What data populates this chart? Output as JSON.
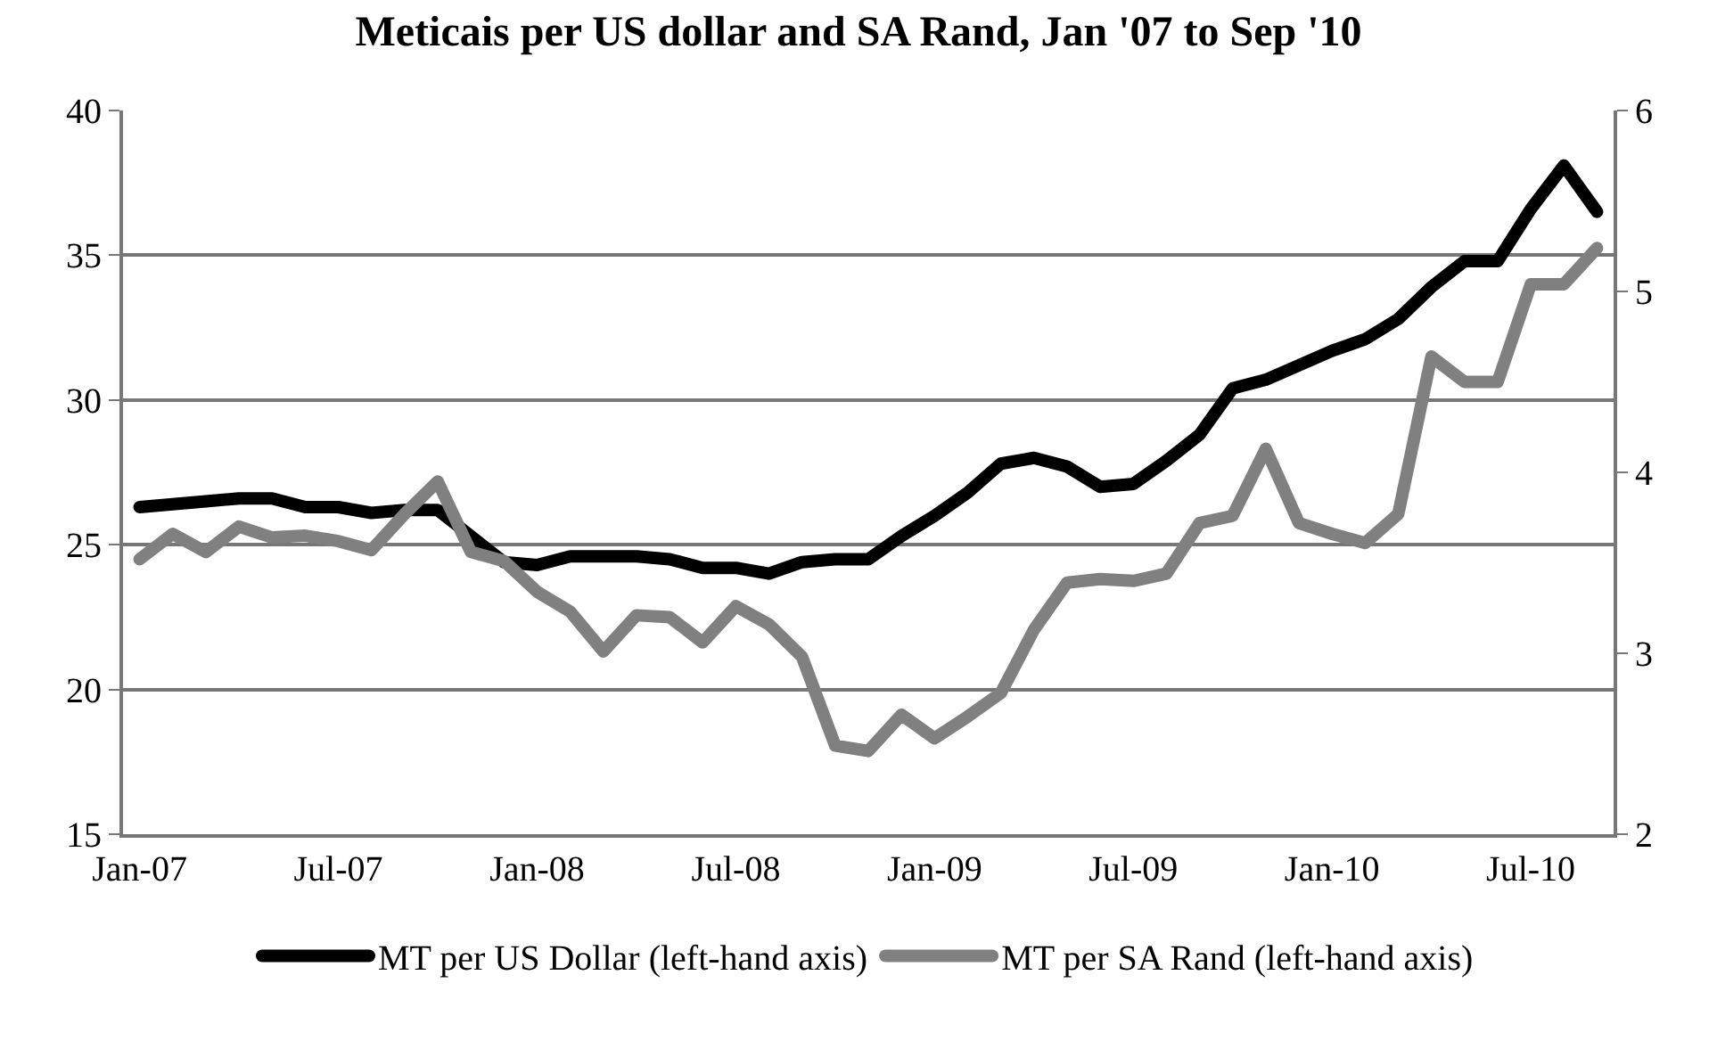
{
  "chart_data": {
    "type": "line",
    "title": "Meticais per US dollar and SA Rand, Jan '07 to Sep '10",
    "categories": [
      "Jan-07",
      null,
      null,
      null,
      null,
      null,
      "Jul-07",
      null,
      null,
      null,
      null,
      null,
      "Jan-08",
      null,
      null,
      null,
      null,
      null,
      "Jul-08",
      null,
      null,
      null,
      null,
      null,
      "Jan-09",
      null,
      null,
      null,
      null,
      null,
      "Jul-09",
      null,
      null,
      null,
      null,
      null,
      "Jan-10",
      null,
      null,
      null,
      null,
      null,
      "Jul-10",
      null,
      null
    ],
    "series": [
      {
        "name": "MT per US Dollar (left-hand axis)",
        "color": "#000000",
        "values": [
          26.3,
          26.4,
          26.5,
          26.6,
          26.6,
          26.3,
          26.3,
          26.1,
          26.2,
          26.2,
          25.3,
          24.4,
          24.3,
          24.6,
          24.6,
          24.6,
          24.5,
          24.2,
          24.2,
          24.0,
          24.4,
          24.5,
          24.5,
          25.3,
          26.0,
          26.8,
          27.8,
          28.0,
          27.7,
          27.0,
          27.1,
          27.9,
          28.8,
          30.4,
          30.7,
          31.2,
          31.7,
          32.1,
          32.8,
          33.9,
          34.8,
          34.8,
          36.6,
          38.1,
          36.5
        ]
      },
      {
        "name": "MT per SA Rand (left-hand axis)",
        "color": "#808080",
        "axis": "y2",
        "values": [
          3.52,
          3.66,
          3.56,
          3.7,
          3.64,
          3.65,
          3.62,
          3.57,
          3.77,
          3.95,
          3.56,
          3.51,
          3.34,
          3.23,
          3.01,
          3.21,
          3.2,
          3.06,
          3.26,
          3.16,
          2.98,
          2.49,
          2.46,
          2.66,
          2.53,
          2.65,
          2.78,
          3.13,
          3.39,
          3.41,
          3.4,
          3.44,
          3.72,
          3.76,
          4.13,
          3.72,
          3.66,
          3.61,
          3.77,
          4.64,
          4.5,
          4.5,
          5.04,
          5.04,
          5.24
        ]
      }
    ],
    "ylim": [
      15,
      40
    ],
    "yticks": [
      15,
      20,
      25,
      30,
      35,
      40
    ],
    "y2lim": [
      2,
      6
    ],
    "y2ticks": [
      2,
      3,
      4,
      5,
      6
    ],
    "grid": "y",
    "legend": "bottom",
    "marker": "none",
    "line_style": "solid"
  }
}
